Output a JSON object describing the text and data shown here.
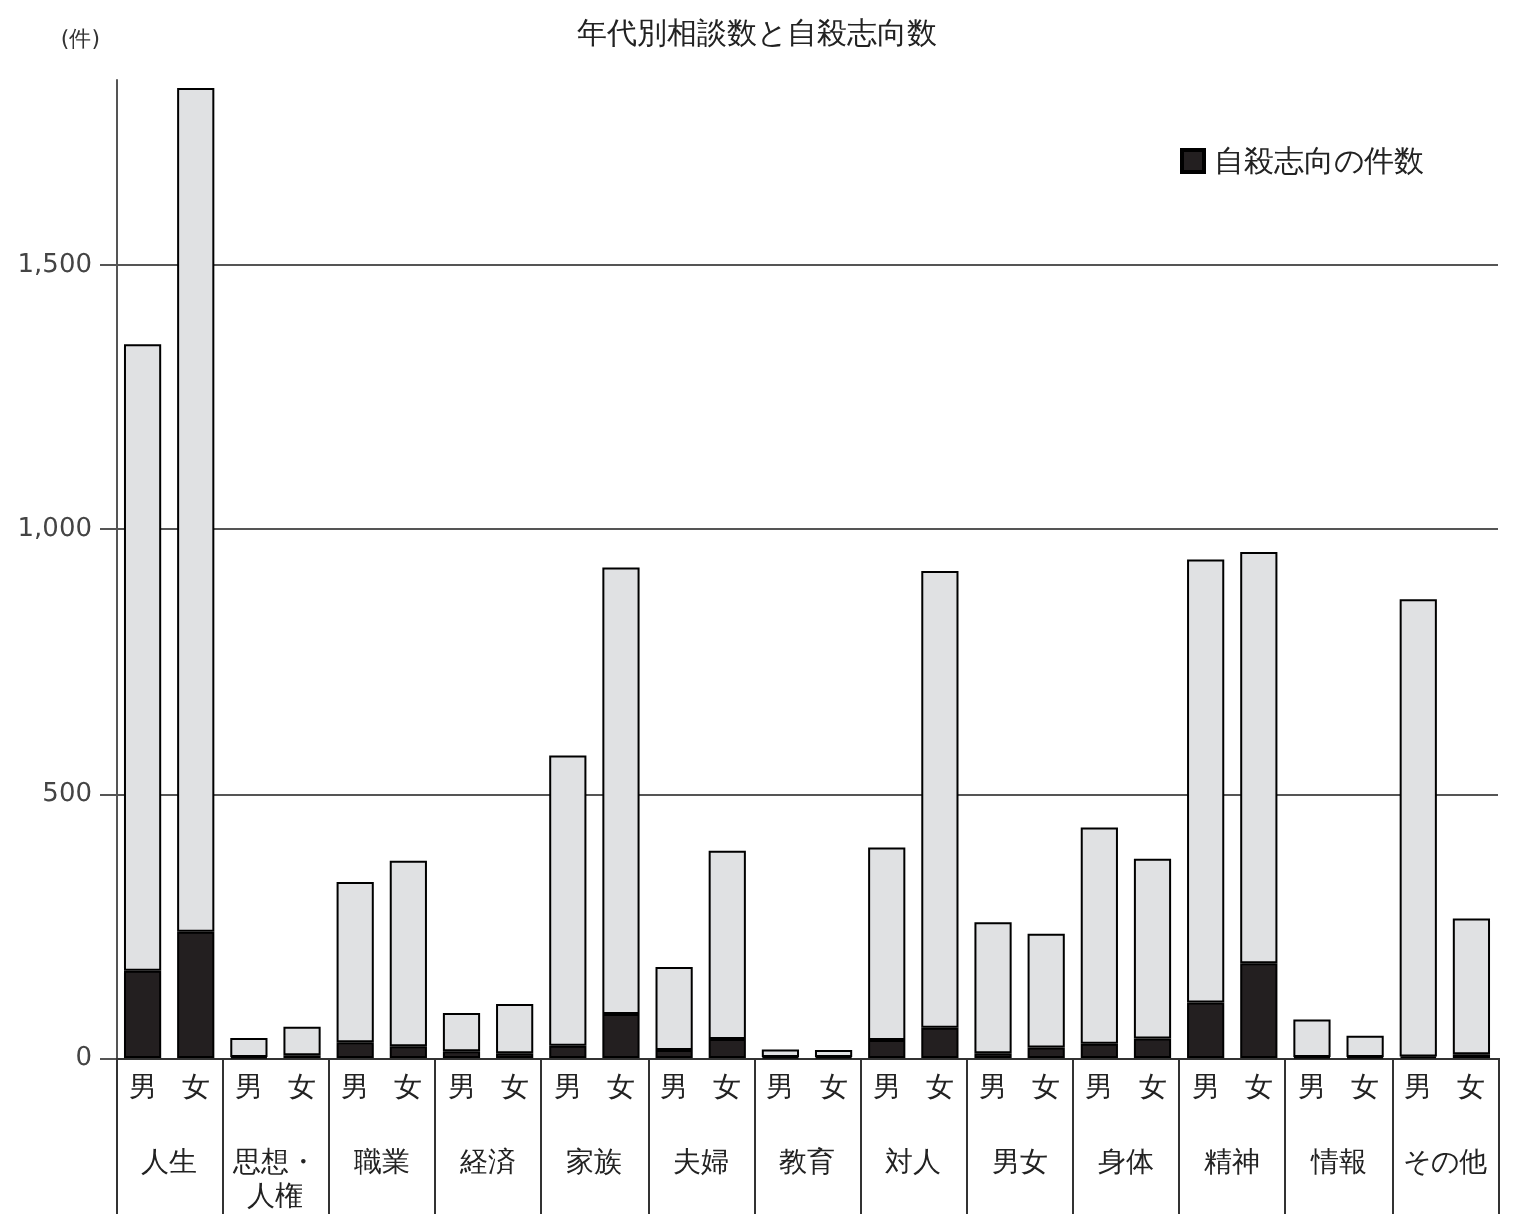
{
  "chart_data": {
    "type": "bar",
    "title": "年代別相談数と自殺志向数",
    "ylabel": "(件)",
    "stacked": true,
    "categories": [
      "男",
      "女",
      "男",
      "女",
      "男",
      "女",
      "男",
      "女",
      "男",
      "女",
      "男",
      "女",
      "男",
      "女",
      "男",
      "女",
      "男",
      "女",
      "男",
      "女",
      "男",
      "女",
      "男",
      "女",
      "男",
      "女"
    ],
    "annotations": [
      "人生",
      "思想・人権",
      "職業",
      "経済",
      "家族",
      "夫婦",
      "教育",
      "対人",
      "男女",
      "身体",
      "精神",
      "情報",
      "その他"
    ],
    "series": [
      {
        "name": "自殺志向の件数",
        "color": "#231f20",
        "values": [
          165,
          239,
          2,
          5,
          30,
          22,
          13,
          9,
          23,
          83,
          15,
          36,
          2,
          2,
          34,
          57,
          9,
          20,
          27,
          37,
          105,
          179,
          2,
          2,
          3,
          7
        ]
      },
      {
        "color": "#e0e1e3",
        "values": [
          1185,
          1596,
          36,
          54,
          303,
          351,
          72,
          93,
          549,
          845,
          157,
          356,
          14,
          13,
          364,
          864,
          248,
          215,
          409,
          340,
          838,
          778,
          71,
          40,
          865,
          257
        ]
      }
    ],
    "ylim": [
      0,
      1850
    ],
    "yticks": [
      0,
      500,
      {
        "value": 1000,
        "label": "1,000"
      },
      {
        "value": 1500,
        "label": "1,500"
      }
    ],
    "grid": "y",
    "legend": "top right"
  }
}
